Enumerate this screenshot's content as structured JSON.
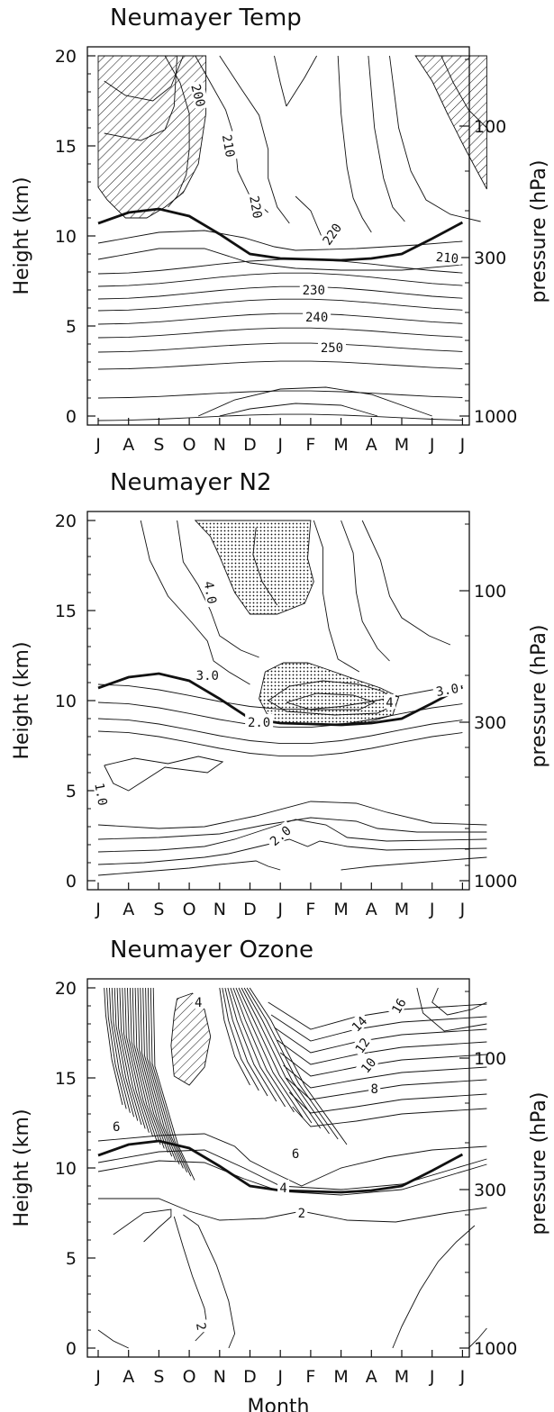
{
  "chart_data": [
    {
      "type": "contour",
      "title": "Neumayer Temp",
      "xlabel": "",
      "ylabel": "Height (km)",
      "y2label": "pressure (hPa)",
      "x_categories": [
        "J",
        "A",
        "S",
        "O",
        "N",
        "D",
        "J",
        "F",
        "M",
        "A",
        "M",
        "J",
        "J"
      ],
      "y_ticks": [
        "0",
        "5",
        "10",
        "15",
        "20"
      ],
      "y2_ticks": [
        "1000",
        "300",
        "100"
      ],
      "ylim": [
        0,
        20
      ],
      "hatched_region": "below 200",
      "contour_labels": [
        "200",
        "210",
        "220",
        "220",
        "210",
        "230",
        "240",
        "250"
      ],
      "tropopause_km": [
        10.7,
        11.3,
        11.5,
        11.1,
        10.1,
        9.0,
        8.75,
        8.7,
        8.65,
        8.75,
        9.0,
        9.85,
        10.75
      ],
      "contour_levels_km_ordered": [
        0.35,
        1.6,
        2.6,
        3.55,
        4.35,
        5.1,
        5.85,
        6.5,
        7.2,
        7.9
      ]
    },
    {
      "type": "contour",
      "title": "Neumayer N2",
      "xlabel": "",
      "ylabel": "Height (km)",
      "y2label": "pressure (hPa)",
      "x_categories": [
        "J",
        "A",
        "S",
        "O",
        "N",
        "D",
        "J",
        "F",
        "M",
        "A",
        "M",
        "J",
        "J"
      ],
      "y_ticks": [
        "0",
        "5",
        "10",
        "15",
        "20"
      ],
      "y2_ticks": [
        "1000",
        "300",
        "100"
      ],
      "ylim": [
        0,
        20
      ],
      "stippled_region": "above 4.0",
      "contour_labels": [
        "4.0",
        "3.0",
        "2.0",
        "1.0",
        "2.0",
        "3.0",
        "4"
      ],
      "tropopause_km": [
        10.7,
        11.3,
        11.5,
        11.1,
        10.1,
        9.0,
        8.75,
        8.7,
        8.65,
        8.75,
        9.0,
        9.85,
        10.75
      ]
    },
    {
      "type": "contour",
      "title": "Neumayer Ozone",
      "xlabel": "Month",
      "ylabel": "Height (km)",
      "y2label": "pressure (hPa)",
      "x_categories": [
        "J",
        "A",
        "S",
        "O",
        "N",
        "D",
        "J",
        "F",
        "M",
        "A",
        "M",
        "J",
        "J"
      ],
      "y_ticks": [
        "0",
        "5",
        "10",
        "15",
        "20"
      ],
      "y2_ticks": [
        "1000",
        "300",
        "100"
      ],
      "ylim": [
        0,
        20
      ],
      "hatched_region": "below 4",
      "contour_labels": [
        "16",
        "14",
        "12",
        "10",
        "8",
        "4",
        "6",
        "6",
        "4",
        "2",
        "2"
      ],
      "tropopause_km": [
        10.7,
        11.3,
        11.5,
        11.1,
        10.1,
        9.0,
        8.75,
        8.7,
        8.65,
        8.75,
        9.0,
        9.85,
        10.75
      ]
    }
  ]
}
